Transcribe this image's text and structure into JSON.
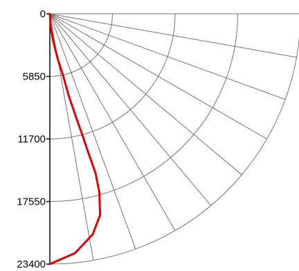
{
  "chart_data": {
    "type": "line",
    "title": "",
    "xlabel": "",
    "ylabel": "",
    "coordinate_system": "polar-quadrant",
    "radial_axis": {
      "ticks": [
        0,
        5850,
        11700,
        17550,
        23400
      ],
      "tick_labels": [
        "0",
        "5850",
        "11700",
        "17550",
        "23400"
      ],
      "range": [
        0,
        23400
      ],
      "label_placement": "left-vertical",
      "direction": "downward"
    },
    "angular_axis": {
      "range_degrees": [
        0,
        90
      ],
      "spoke_step_degrees": 10,
      "labels_shown": false
    },
    "grid": true,
    "legend": "none",
    "series": [
      {
        "points": [
          {
            "r": 0,
            "angle": 0
          },
          {
            "r": 1300,
            "angle": 4
          },
          {
            "r": 2600,
            "angle": 7
          },
          {
            "r": 4300,
            "angle": 10
          },
          {
            "r": 5750,
            "angle": 12
          },
          {
            "r": 7850,
            "angle": 13
          },
          {
            "r": 9550,
            "angle": 14
          },
          {
            "r": 11700,
            "angle": 15
          },
          {
            "r": 13550,
            "angle": 15.5
          },
          {
            "r": 15500,
            "angle": 16
          },
          {
            "r": 17300,
            "angle": 15.5
          },
          {
            "r": 19400,
            "angle": 14
          },
          {
            "r": 21000,
            "angle": 11
          },
          {
            "r": 22500,
            "angle": 6
          },
          {
            "r": 23400,
            "angle": 0
          }
        ]
      }
    ],
    "colors": {
      "series": "#e00000",
      "grid": "#707070",
      "axis": "#000000",
      "text": "#000000",
      "background": "#ffffff"
    }
  }
}
